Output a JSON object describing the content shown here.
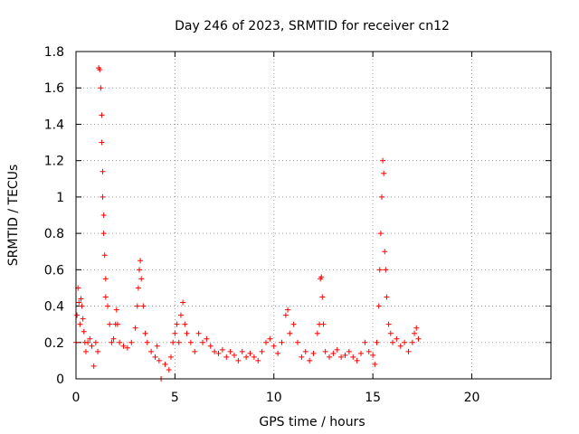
{
  "chart_data": {
    "type": "scatter",
    "title": "Day 246 of 2023, SRMTID for receiver cn12",
    "xlabel": "GPS time / hours",
    "ylabel": "SRMTID / TECUs",
    "xlim": [
      0,
      24
    ],
    "ylim": [
      0,
      1.8
    ],
    "xticks": [
      0,
      5,
      10,
      15,
      20
    ],
    "xtick_labels": [
      "0",
      "5",
      "10",
      "15",
      "20"
    ],
    "yticks": [
      0,
      0.2,
      0.4,
      0.6,
      0.8,
      1,
      1.2,
      1.4,
      1.6,
      1.8
    ],
    "ytick_labels": [
      "0",
      "0.2",
      "0.4",
      "0.6",
      "0.8",
      "1",
      "1.2",
      "1.4",
      "1.6",
      "1.8"
    ],
    "grid": true,
    "marker": "plus",
    "series": [
      {
        "name": "cn12",
        "color": "#ff0000",
        "points": [
          [
            0.0,
            0.2
          ],
          [
            0.05,
            0.35
          ],
          [
            0.1,
            0.5
          ],
          [
            0.15,
            0.42
          ],
          [
            0.2,
            0.3
          ],
          [
            0.25,
            0.44
          ],
          [
            0.3,
            0.4
          ],
          [
            0.35,
            0.33
          ],
          [
            0.4,
            0.26
          ],
          [
            0.45,
            0.2
          ],
          [
            0.5,
            0.15
          ],
          [
            0.6,
            0.2
          ],
          [
            0.7,
            0.22
          ],
          [
            0.8,
            0.18
          ],
          [
            0.9,
            0.07
          ],
          [
            1.0,
            0.2
          ],
          [
            1.1,
            0.15
          ],
          [
            1.15,
            1.71
          ],
          [
            1.2,
            1.7
          ],
          [
            1.25,
            1.6
          ],
          [
            1.3,
            1.45
          ],
          [
            1.3,
            1.3
          ],
          [
            1.35,
            1.14
          ],
          [
            1.35,
            1.0
          ],
          [
            1.4,
            0.9
          ],
          [
            1.4,
            0.8
          ],
          [
            1.45,
            0.68
          ],
          [
            1.5,
            0.55
          ],
          [
            1.5,
            0.45
          ],
          [
            1.6,
            0.4
          ],
          [
            1.7,
            0.3
          ],
          [
            1.8,
            0.2
          ],
          [
            1.9,
            0.22
          ],
          [
            2.0,
            0.3
          ],
          [
            2.05,
            0.38
          ],
          [
            2.1,
            0.3
          ],
          [
            2.2,
            0.2
          ],
          [
            2.4,
            0.18
          ],
          [
            2.6,
            0.17
          ],
          [
            2.8,
            0.2
          ],
          [
            3.0,
            0.28
          ],
          [
            3.1,
            0.4
          ],
          [
            3.15,
            0.5
          ],
          [
            3.2,
            0.6
          ],
          [
            3.25,
            0.65
          ],
          [
            3.3,
            0.55
          ],
          [
            3.4,
            0.4
          ],
          [
            3.5,
            0.25
          ],
          [
            3.6,
            0.2
          ],
          [
            3.8,
            0.15
          ],
          [
            4.0,
            0.12
          ],
          [
            4.1,
            0.18
          ],
          [
            4.2,
            0.1
          ],
          [
            4.3,
            0.0
          ],
          [
            4.5,
            0.08
          ],
          [
            4.7,
            0.05
          ],
          [
            4.8,
            0.12
          ],
          [
            4.9,
            0.2
          ],
          [
            5.0,
            0.25
          ],
          [
            5.1,
            0.3
          ],
          [
            5.2,
            0.2
          ],
          [
            5.3,
            0.35
          ],
          [
            5.4,
            0.42
          ],
          [
            5.5,
            0.3
          ],
          [
            5.6,
            0.25
          ],
          [
            5.8,
            0.2
          ],
          [
            6.0,
            0.15
          ],
          [
            6.2,
            0.25
          ],
          [
            6.4,
            0.2
          ],
          [
            6.6,
            0.22
          ],
          [
            6.8,
            0.18
          ],
          [
            7.0,
            0.15
          ],
          [
            7.2,
            0.14
          ],
          [
            7.4,
            0.16
          ],
          [
            7.6,
            0.12
          ],
          [
            7.8,
            0.15
          ],
          [
            8.0,
            0.13
          ],
          [
            8.2,
            0.1
          ],
          [
            8.4,
            0.15
          ],
          [
            8.6,
            0.12
          ],
          [
            8.8,
            0.14
          ],
          [
            9.0,
            0.12
          ],
          [
            9.2,
            0.1
          ],
          [
            9.4,
            0.15
          ],
          [
            9.6,
            0.2
          ],
          [
            9.8,
            0.22
          ],
          [
            10.0,
            0.18
          ],
          [
            10.2,
            0.14
          ],
          [
            10.4,
            0.2
          ],
          [
            10.6,
            0.35
          ],
          [
            10.7,
            0.38
          ],
          [
            10.8,
            0.25
          ],
          [
            11.0,
            0.3
          ],
          [
            11.2,
            0.2
          ],
          [
            11.4,
            0.12
          ],
          [
            11.6,
            0.15
          ],
          [
            11.8,
            0.1
          ],
          [
            12.0,
            0.14
          ],
          [
            12.2,
            0.25
          ],
          [
            12.3,
            0.3
          ],
          [
            12.35,
            0.55
          ],
          [
            12.4,
            0.56
          ],
          [
            12.45,
            0.45
          ],
          [
            12.5,
            0.3
          ],
          [
            12.6,
            0.15
          ],
          [
            12.8,
            0.12
          ],
          [
            13.0,
            0.14
          ],
          [
            13.2,
            0.16
          ],
          [
            13.4,
            0.12
          ],
          [
            13.6,
            0.13
          ],
          [
            13.8,
            0.15
          ],
          [
            14.0,
            0.12
          ],
          [
            14.2,
            0.1
          ],
          [
            14.4,
            0.14
          ],
          [
            14.6,
            0.2
          ],
          [
            14.8,
            0.15
          ],
          [
            15.0,
            0.13
          ],
          [
            15.1,
            0.08
          ],
          [
            15.2,
            0.2
          ],
          [
            15.3,
            0.4
          ],
          [
            15.35,
            0.6
          ],
          [
            15.4,
            0.8
          ],
          [
            15.45,
            1.0
          ],
          [
            15.5,
            1.2
          ],
          [
            15.55,
            1.13
          ],
          [
            15.6,
            0.7
          ],
          [
            15.65,
            0.6
          ],
          [
            15.7,
            0.45
          ],
          [
            15.8,
            0.3
          ],
          [
            15.9,
            0.25
          ],
          [
            16.0,
            0.2
          ],
          [
            16.2,
            0.22
          ],
          [
            16.4,
            0.18
          ],
          [
            16.6,
            0.2
          ],
          [
            16.8,
            0.15
          ],
          [
            17.0,
            0.2
          ],
          [
            17.1,
            0.25
          ],
          [
            17.2,
            0.28
          ],
          [
            17.3,
            0.22
          ]
        ]
      }
    ]
  }
}
